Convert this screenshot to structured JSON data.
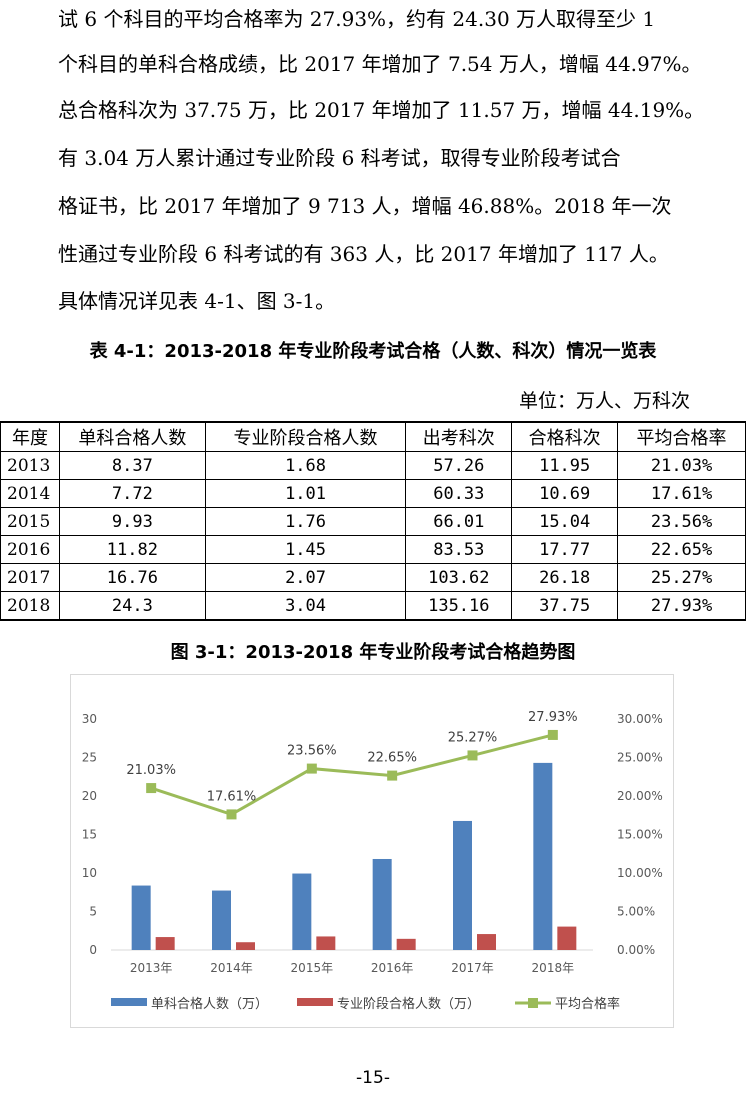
{
  "paragraph": [
    "试 6 个科目的平均合格率为 27.93%，约有 24.30 万人取得至少 1",
    "个科目的单科合格成绩，比 2017 年增加了 7.54 万人，增幅 44.97%。",
    "总合格科次为 37.75 万，比 2017 年增加了 11.57 万，增幅 44.19%。",
    "有 3.04 万人累计通过专业阶段 6 科考试，取得专业阶段考试合",
    "格证书，比 2017 年增加了 9 713 人，增幅 46.88%。2018 年一次",
    "性通过专业阶段 6 科考试的有 363 人，比 2017 年增加了 117 人。",
    "具体情况详见表 4-1、图 3-1。"
  ],
  "table": {
    "title": "表 4-1：2013-2018 年专业阶段考试合格（人数、科次）情况一览表",
    "unit": "单位：万人、万科次",
    "headers": [
      "年度",
      "单科合格人数",
      "专业阶段合格人数",
      "出考科次",
      "合格科次",
      "平均合格率"
    ],
    "rows": [
      [
        "2013",
        "8.37",
        "1.68",
        "57.26",
        "11.95",
        "21.03%"
      ],
      [
        "2014",
        "7.72",
        "1.01",
        "60.33",
        "10.69",
        "17.61%"
      ],
      [
        "2015",
        "9.93",
        "1.76",
        "66.01",
        "15.04",
        "23.56%"
      ],
      [
        "2016",
        "11.82",
        "1.45",
        "83.53",
        "17.77",
        "22.65%"
      ],
      [
        "2017",
        "16.76",
        "2.07",
        "103.62",
        "26.18",
        "25.27%"
      ],
      [
        "2018",
        "24.3",
        "3.04",
        "135.16",
        "37.75",
        "27.93%"
      ]
    ]
  },
  "figure_title": "图 3-1：2013-2018 年专业阶段考试合格趋势图",
  "chart_data": {
    "type": "bar",
    "categories": [
      "2013年",
      "2014年",
      "2015年",
      "2016年",
      "2017年",
      "2018年"
    ],
    "series": [
      {
        "name": "单科合格人数（万）",
        "type": "bar",
        "axis": "left",
        "color": "#4f81bd",
        "values": [
          8.37,
          7.72,
          9.93,
          11.82,
          16.76,
          24.3
        ]
      },
      {
        "name": "专业阶段合格人数（万）",
        "type": "bar",
        "axis": "left",
        "color": "#c0504d",
        "values": [
          1.68,
          1.01,
          1.76,
          1.45,
          2.07,
          3.04
        ]
      },
      {
        "name": "平均合格率",
        "type": "line",
        "axis": "right",
        "color": "#9bbb59",
        "values": [
          21.03,
          17.61,
          23.56,
          22.65,
          25.27,
          27.93
        ],
        "labels": [
          "21.03%",
          "17.61%",
          "23.56%",
          "22.65%",
          "25.27%",
          "27.93%"
        ]
      }
    ],
    "ylim": [
      0,
      30
    ],
    "y_ticks": [
      "0",
      "5",
      "10",
      "15",
      "20",
      "25",
      "30"
    ],
    "y2lim": [
      0,
      30
    ],
    "y2_ticks": [
      "0.00%",
      "5.00%",
      "10.00%",
      "15.00%",
      "20.00%",
      "25.00%",
      "30.00%"
    ],
    "legend": "bottom",
    "grid": false
  },
  "page_number": "-15-"
}
